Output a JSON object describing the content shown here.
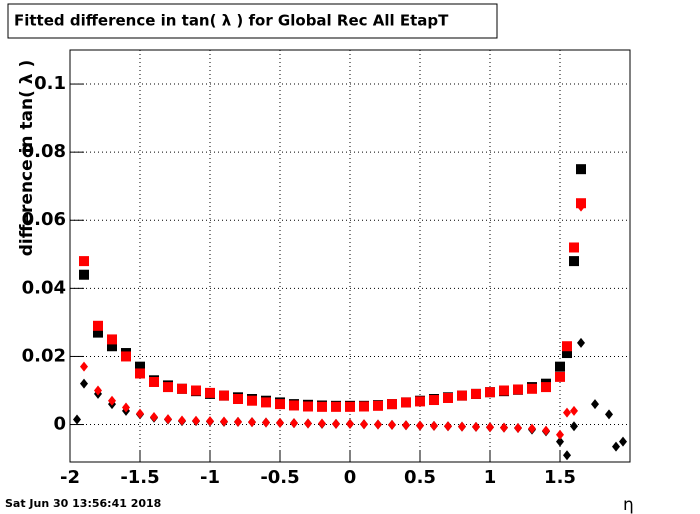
{
  "chart_data": {
    "type": "scatter",
    "title": "Fitted difference in tan( λ ) for Global Rec All EtapT",
    "ylabel": "difference in tan( λ )",
    "xlabel": "η",
    "footer": "Sat Jun 30 13:56:41 2018",
    "x": [
      -1.95,
      -1.9,
      -1.8,
      -1.7,
      -1.6,
      -1.5,
      -1.4,
      -1.3,
      -1.2,
      -1.1,
      -1.0,
      -0.9,
      -0.8,
      -0.7,
      -0.6,
      -0.5,
      -0.4,
      -0.3,
      -0.2,
      -0.1,
      0,
      0.1,
      0.2,
      0.3,
      0.4,
      0.5,
      0.6,
      0.7,
      0.8,
      0.9,
      1.0,
      1.1,
      1.2,
      1.3,
      1.4,
      1.5,
      1.55,
      1.6,
      1.65,
      1.75,
      1.85,
      1.9,
      1.95
    ],
    "series": [
      {
        "color": "#000000",
        "marker": "square",
        "values": [
          null,
          0.044,
          0.027,
          0.023,
          0.021,
          0.017,
          0.013,
          0.0115,
          0.0105,
          0.0098,
          0.009,
          0.0085,
          0.008,
          0.0075,
          0.007,
          0.0065,
          0.006,
          0.0058,
          0.0056,
          0.0055,
          0.0055,
          0.0055,
          0.0057,
          0.006,
          0.0065,
          0.007,
          0.0075,
          0.008,
          0.0085,
          0.009,
          0.0095,
          0.0098,
          0.0102,
          0.011,
          0.012,
          0.017,
          0.021,
          0.048,
          0.075,
          null,
          null,
          null,
          null
        ]
      },
      {
        "color": "#ff0000",
        "marker": "square",
        "values": [
          null,
          0.048,
          0.029,
          0.025,
          0.02,
          0.015,
          0.0125,
          0.011,
          0.0105,
          0.01,
          0.0093,
          0.0085,
          0.0075,
          0.007,
          0.0065,
          0.006,
          0.0056,
          0.0053,
          0.0052,
          0.0052,
          0.0052,
          0.0053,
          0.0055,
          0.006,
          0.0065,
          0.0068,
          0.0072,
          0.0078,
          0.0085,
          0.009,
          0.0095,
          0.01,
          0.0103,
          0.0105,
          0.011,
          0.014,
          0.023,
          0.052,
          0.065,
          null,
          null,
          null,
          null
        ]
      },
      {
        "color": "#000000",
        "marker": "diamond",
        "values": [
          0.0015,
          0.012,
          0.009,
          0.006,
          0.004,
          0.003,
          0.002,
          0.0015,
          0.001,
          0.001,
          0.0009,
          0.0008,
          0.0008,
          0.0007,
          0.0006,
          0.0005,
          0.0004,
          0.0003,
          0.0002,
          0.0002,
          0.0002,
          0.0001,
          0,
          -0.0001,
          -0.0002,
          -0.0003,
          -0.0004,
          -0.0005,
          -0.0006,
          -0.0007,
          -0.0008,
          -0.0009,
          -0.001,
          -0.0015,
          -0.002,
          -0.005,
          -0.009,
          -0.0005,
          0.024,
          0.006,
          0.003,
          -0.0065,
          -0.005
        ]
      },
      {
        "color": "#ff0000",
        "marker": "diamond",
        "values": [
          null,
          0.017,
          0.01,
          0.007,
          0.005,
          0.0032,
          0.0022,
          0.0016,
          0.0012,
          0.0011,
          0.001,
          0.0009,
          0.0008,
          0.0007,
          0.0006,
          0.0005,
          0.0004,
          0.0003,
          0.0003,
          0.0002,
          0.0002,
          0.0001,
          0,
          -0.0001,
          -0.0002,
          -0.0003,
          -0.0004,
          -0.0005,
          -0.0006,
          -0.0007,
          -0.0008,
          -0.0009,
          -0.001,
          -0.0012,
          -0.0018,
          -0.003,
          0.0035,
          0.004,
          0.064,
          null,
          null,
          null,
          null
        ]
      }
    ],
    "xlim": [
      -2,
      2
    ],
    "ylim": [
      -0.011,
      0.11
    ],
    "xticks": [
      -2,
      -1.5,
      -1,
      -0.5,
      0,
      0.5,
      1,
      1.5
    ],
    "yticks": [
      0,
      0.02,
      0.04,
      0.06,
      0.08,
      0.1
    ],
    "grid": true
  }
}
